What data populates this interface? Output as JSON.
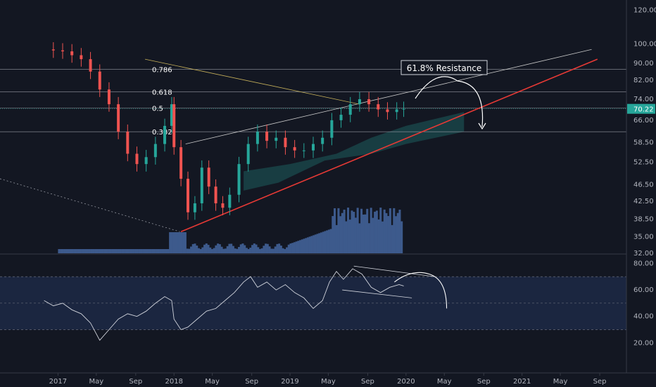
{
  "chart_data": [
    {
      "type": "candlestick",
      "title": "",
      "y_scale": "log",
      "ylim": [
        32,
        125
      ],
      "y_ticks": [
        "120.00",
        "100.00",
        "90.00",
        "82.00",
        "74.00",
        "66.00",
        "58.50",
        "52.50",
        "46.50",
        "42.50",
        "38.50",
        "35.00",
        "32.00"
      ],
      "x_ticks": [
        "2017",
        "May",
        "Sep",
        "2018",
        "May",
        "Sep",
        "2019",
        "May",
        "Sep",
        "2020",
        "May",
        "Sep",
        "2021",
        "May",
        "Sep"
      ],
      "last_price": "70.22",
      "weekly_close": [
        [
          2016.88,
          97
        ],
        [
          2016.96,
          96.5
        ],
        [
          2017.04,
          96
        ],
        [
          2017.12,
          94
        ],
        [
          2017.2,
          92
        ],
        [
          2017.28,
          86
        ],
        [
          2017.36,
          78
        ],
        [
          2017.44,
          72
        ],
        [
          2017.52,
          62
        ],
        [
          2017.6,
          55
        ],
        [
          2017.68,
          52
        ],
        [
          2017.76,
          54
        ],
        [
          2017.84,
          58
        ],
        [
          2017.92,
          64
        ],
        [
          2017.98,
          72
        ],
        [
          2018.0,
          57
        ],
        [
          2018.06,
          48
        ],
        [
          2018.12,
          40
        ],
        [
          2018.18,
          42
        ],
        [
          2018.24,
          51
        ],
        [
          2018.3,
          46
        ],
        [
          2018.36,
          42
        ],
        [
          2018.42,
          41
        ],
        [
          2018.48,
          44
        ],
        [
          2018.56,
          52
        ],
        [
          2018.64,
          58
        ],
        [
          2018.72,
          62
        ],
        [
          2018.8,
          59
        ],
        [
          2018.88,
          60
        ],
        [
          2018.96,
          57
        ],
        [
          2019.04,
          56
        ],
        [
          2019.12,
          56
        ],
        [
          2019.2,
          58
        ],
        [
          2019.28,
          60
        ],
        [
          2019.36,
          66
        ],
        [
          2019.44,
          68
        ],
        [
          2019.52,
          72
        ],
        [
          2019.6,
          74
        ],
        [
          2019.68,
          72
        ],
        [
          2019.76,
          70
        ],
        [
          2019.84,
          69
        ],
        [
          2019.92,
          70
        ],
        [
          2019.98,
          70.22
        ]
      ],
      "fib_levels": [
        {
          "label": "0.786",
          "price": 87
        },
        {
          "label": "0.618",
          "price": 77
        },
        {
          "label": "0.5",
          "price": 70.5
        },
        {
          "label": "0.382",
          "price": 62
        }
      ],
      "annotations": [
        {
          "text": "61.8% Resistance"
        }
      ],
      "colors": {
        "up": "#26a69a",
        "down": "#ef5350",
        "trendline": "#e53935",
        "volume": "#3d5a8c",
        "cloud": "#1b4e50"
      }
    },
    {
      "type": "line",
      "title": "",
      "ylim": [
        0,
        85
      ],
      "y_ticks": [
        "80.00",
        "60.00",
        "40.00",
        "20.00"
      ],
      "levels": [
        70,
        50,
        30
      ],
      "rsi": [
        [
          2016.88,
          52
        ],
        [
          2016.96,
          48
        ],
        [
          2017.04,
          50
        ],
        [
          2017.12,
          45
        ],
        [
          2017.2,
          42
        ],
        [
          2017.28,
          35
        ],
        [
          2017.36,
          22
        ],
        [
          2017.44,
          30
        ],
        [
          2017.52,
          38
        ],
        [
          2017.6,
          42
        ],
        [
          2017.68,
          40
        ],
        [
          2017.76,
          44
        ],
        [
          2017.84,
          50
        ],
        [
          2017.92,
          55
        ],
        [
          2017.98,
          52
        ],
        [
          2018.0,
          38
        ],
        [
          2018.06,
          30
        ],
        [
          2018.12,
          32
        ],
        [
          2018.2,
          38
        ],
        [
          2018.28,
          44
        ],
        [
          2018.36,
          46
        ],
        [
          2018.44,
          52
        ],
        [
          2018.52,
          58
        ],
        [
          2018.6,
          66
        ],
        [
          2018.66,
          70
        ],
        [
          2018.72,
          62
        ],
        [
          2018.8,
          66
        ],
        [
          2018.88,
          60
        ],
        [
          2018.96,
          64
        ],
        [
          2019.04,
          58
        ],
        [
          2019.12,
          54
        ],
        [
          2019.2,
          46
        ],
        [
          2019.28,
          52
        ],
        [
          2019.34,
          66
        ],
        [
          2019.4,
          74
        ],
        [
          2019.46,
          68
        ],
        [
          2019.54,
          76
        ],
        [
          2019.62,
          72
        ],
        [
          2019.7,
          62
        ],
        [
          2019.78,
          58
        ],
        [
          2019.86,
          62
        ],
        [
          2019.94,
          64
        ],
        [
          2019.98,
          63
        ]
      ]
    }
  ]
}
